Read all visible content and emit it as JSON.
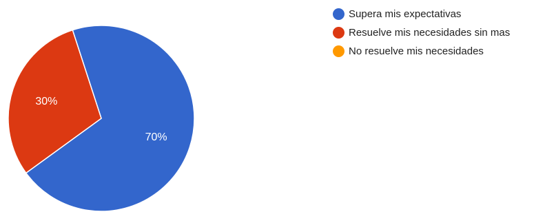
{
  "chart_data": {
    "type": "pie",
    "categories": [
      "Supera mis expectativas",
      "Resuelve mis necesidades sin mas",
      "No resuelve mis necesidades"
    ],
    "values": [
      70,
      30,
      0
    ],
    "value_labels": [
      "70%",
      "30%",
      ""
    ],
    "colors": [
      "#3366cc",
      "#dc3912",
      "#ff9900"
    ],
    "legend_position": "right"
  }
}
